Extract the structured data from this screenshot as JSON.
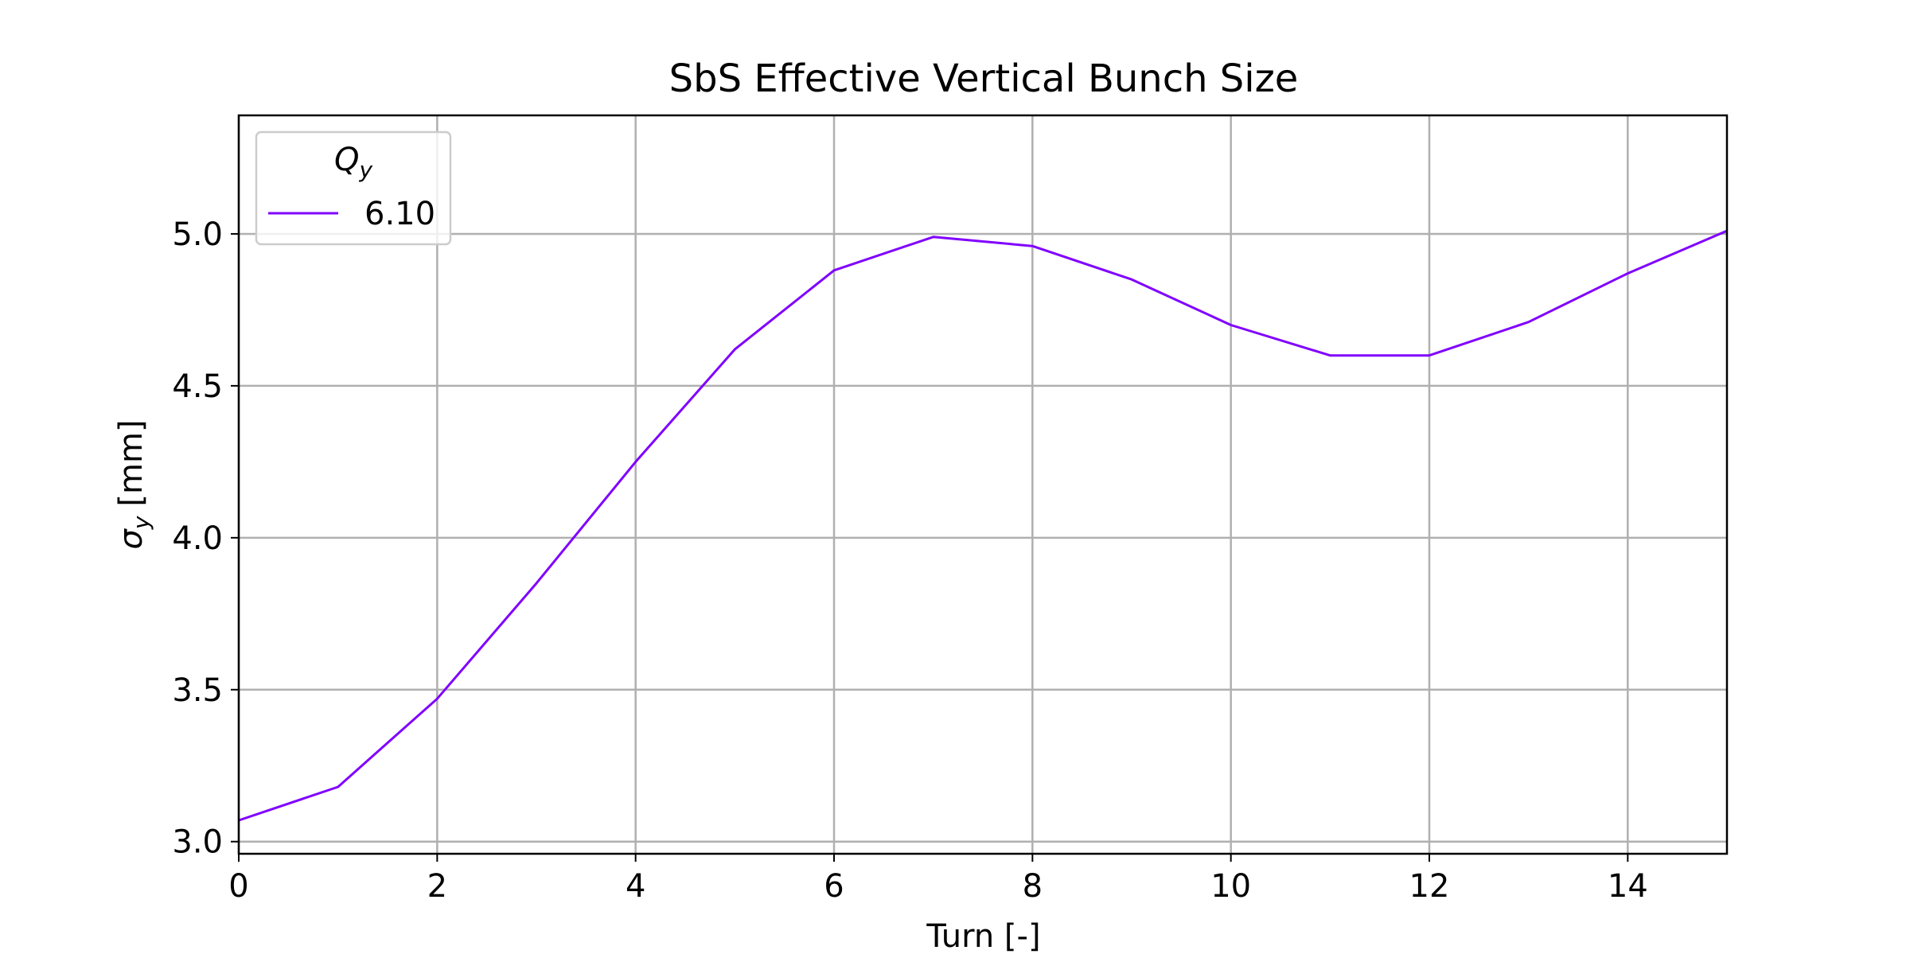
{
  "chart_data": {
    "type": "line",
    "title": "SbS Effective Vertical Bunch Size",
    "xlabel": "Turn [-]",
    "ylabel_symbol": "σ",
    "ylabel_subscript": "y",
    "ylabel_unit": "[mm]",
    "xlim": [
      0,
      15
    ],
    "ylim": [
      2.96,
      5.39
    ],
    "xticks": [
      0,
      2,
      4,
      6,
      8,
      10,
      12,
      14
    ],
    "xtick_labels": [
      "0",
      "2",
      "4",
      "6",
      "8",
      "10",
      "12",
      "14"
    ],
    "yticks": [
      3.0,
      3.5,
      4.0,
      4.5,
      5.0
    ],
    "ytick_labels": [
      "3.0",
      "3.5",
      "4.0",
      "4.5",
      "5.0"
    ],
    "grid": true,
    "legend": {
      "placement": "top-left",
      "title_symbol": "Q",
      "title_subscript": "y"
    },
    "series": [
      {
        "name": "6.10",
        "color": "#8000ff",
        "x": [
          0,
          1,
          2,
          3,
          4,
          5,
          6,
          7,
          8,
          9,
          10,
          11,
          12,
          13,
          14,
          15
        ],
        "y": [
          3.07,
          3.18,
          3.47,
          3.85,
          4.25,
          4.62,
          4.88,
          4.99,
          4.96,
          4.85,
          4.7,
          4.6,
          4.6,
          4.71,
          4.87,
          5.01
        ]
      }
    ]
  }
}
